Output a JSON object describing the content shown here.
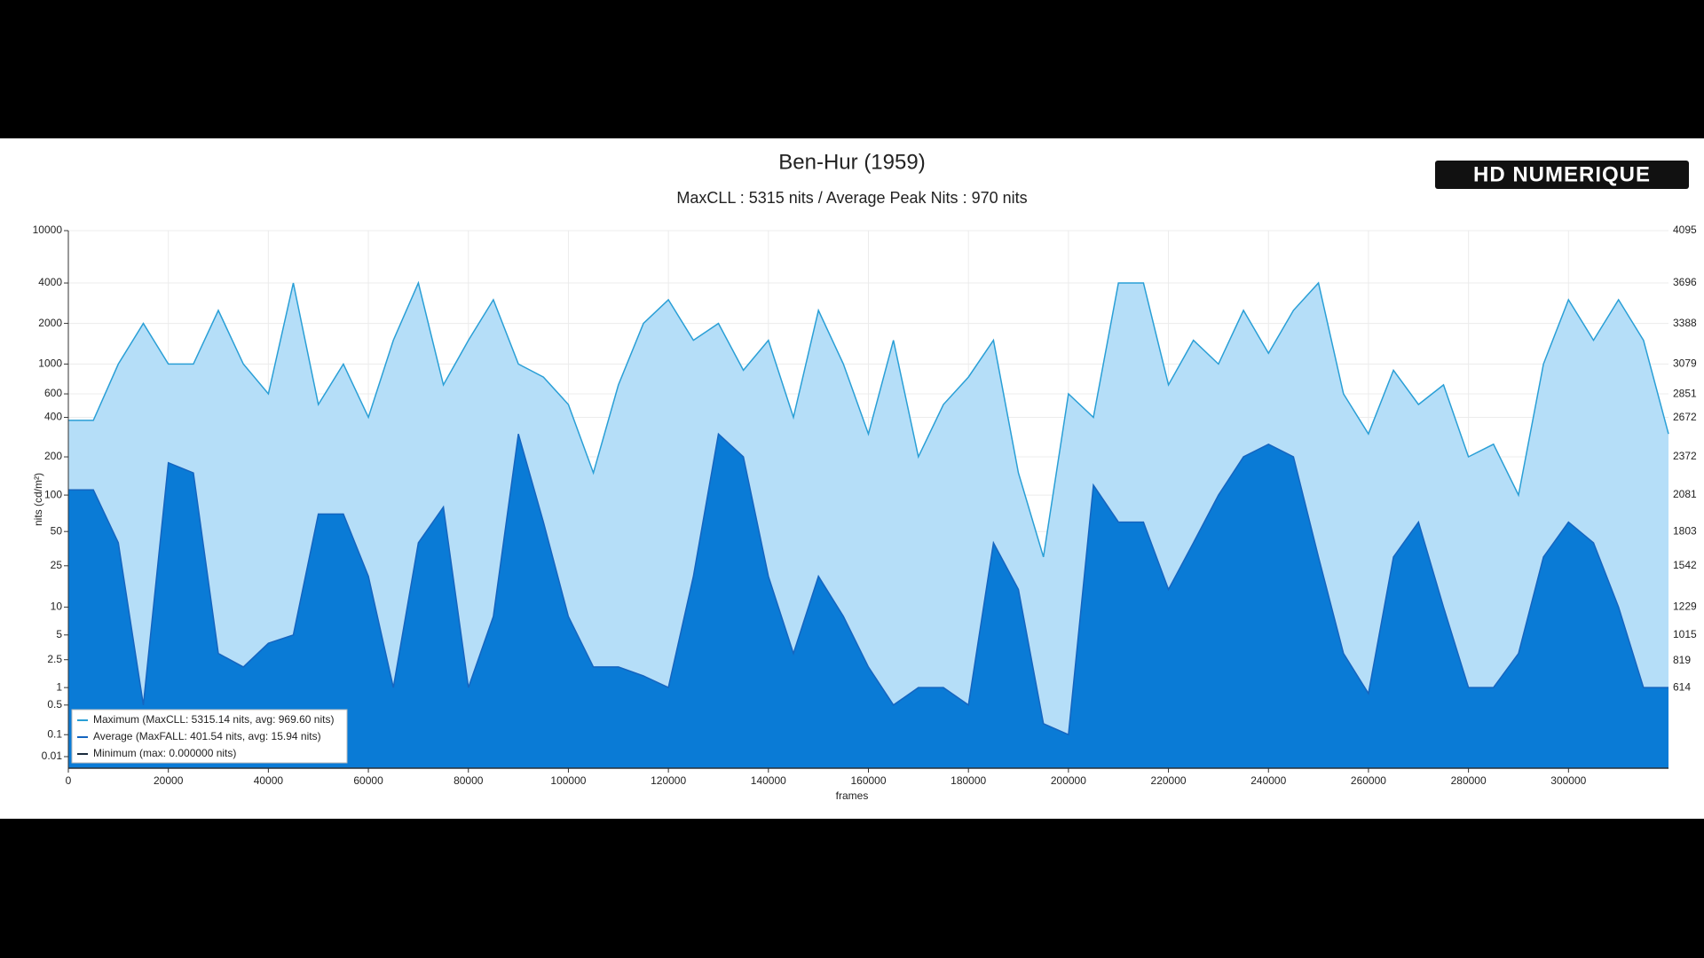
{
  "chart_data": {
    "type": "area",
    "title": "Ben-Hur (1959)",
    "subtitle": "MaxCLL : 5315 nits / Average Peak Nits : 970 nits",
    "logo": "HD NUMERIQUE",
    "xlabel": "frames",
    "ylabel": "nits (cd/m²)",
    "yscale": "pq",
    "grid": true,
    "legend": "lower left",
    "xlim": [
      0,
      320000
    ],
    "xticks": [
      0,
      20000,
      40000,
      60000,
      80000,
      100000,
      120000,
      140000,
      160000,
      180000,
      200000,
      220000,
      240000,
      260000,
      280000,
      300000
    ],
    "ylim": [
      0,
      10000
    ],
    "yticks": [
      0.01,
      0.1,
      0.5,
      1,
      2.5,
      5,
      10,
      25,
      50,
      100,
      200,
      400,
      600,
      1000,
      2000,
      4000,
      10000
    ],
    "y2lim": [
      0,
      4095
    ],
    "y2ticks": [
      614,
      819,
      1015,
      1229,
      1542,
      1803,
      2081,
      2372,
      2672,
      2851,
      3079,
      3388,
      3696,
      4095
    ],
    "x": [
      0,
      5000,
      10000,
      15000,
      20000,
      25000,
      30000,
      35000,
      40000,
      45000,
      50000,
      55000,
      60000,
      65000,
      70000,
      75000,
      80000,
      85000,
      90000,
      95000,
      100000,
      105000,
      110000,
      115000,
      120000,
      125000,
      130000,
      135000,
      140000,
      145000,
      150000,
      155000,
      160000,
      165000,
      170000,
      175000,
      180000,
      185000,
      190000,
      195000,
      200000,
      205000,
      210000,
      215000,
      220000,
      225000,
      230000,
      235000,
      240000,
      245000,
      250000,
      255000,
      260000,
      265000,
      270000,
      275000,
      280000,
      285000,
      290000,
      295000,
      300000,
      305000,
      310000,
      315000,
      320000
    ],
    "series": [
      {
        "name": "Maximum (MaxCLL: 5315.14 nits, avg: 969.60 nits)",
        "color": "#2a9fd6",
        "fill": "#b5def8",
        "values": [
          380,
          380,
          1000,
          2000,
          1000,
          1000,
          2500,
          1000,
          600,
          4000,
          500,
          1000,
          400,
          1500,
          4000,
          700,
          1500,
          3000,
          1000,
          800,
          500,
          150,
          700,
          2000,
          3000,
          1500,
          2000,
          900,
          1500,
          400,
          2500,
          1000,
          300,
          1500,
          200,
          500,
          800,
          1500,
          150,
          30,
          600,
          400,
          4000,
          4000,
          700,
          1500,
          1000,
          2500,
          1200,
          2500,
          4000,
          600,
          300,
          900,
          500,
          700,
          200,
          250,
          100,
          1000,
          3000,
          1500,
          3000,
          1500,
          300
        ]
      },
      {
        "name": "Average (MaxFALL: 401.54 nits, avg: 15.94 nits)",
        "color": "#1565c0",
        "fill": "#0a7bd6",
        "values": [
          110,
          110,
          40,
          0.5,
          180,
          150,
          3,
          2,
          4,
          5,
          70,
          70,
          20,
          1,
          40,
          80,
          1,
          8,
          300,
          60,
          8,
          2,
          2,
          1.5,
          1,
          20,
          300,
          200,
          20,
          3,
          20,
          8,
          2,
          0.5,
          1,
          1,
          0.5,
          40,
          15,
          0.2,
          0.1,
          120,
          60,
          60,
          15,
          40,
          100,
          200,
          250,
          200,
          30,
          3,
          0.8,
          30,
          60,
          10,
          1,
          1,
          3,
          30,
          60,
          40,
          10,
          1,
          1
        ]
      },
      {
        "name": "Minimum (max: 0.000000 nits)",
        "color": "#1a2b3c",
        "fill": "none",
        "values": [
          0,
          0,
          0,
          0,
          0,
          0,
          0,
          0,
          0,
          0,
          0,
          0,
          0,
          0,
          0,
          0,
          0,
          0,
          0,
          0,
          0,
          0,
          0,
          0,
          0,
          0,
          0,
          0,
          0,
          0,
          0,
          0,
          0,
          0,
          0,
          0,
          0,
          0,
          0,
          0,
          0,
          0,
          0,
          0,
          0,
          0,
          0,
          0,
          0,
          0,
          0,
          0,
          0,
          0,
          0,
          0,
          0,
          0,
          0,
          0,
          0,
          0,
          0,
          0,
          0
        ]
      }
    ]
  }
}
